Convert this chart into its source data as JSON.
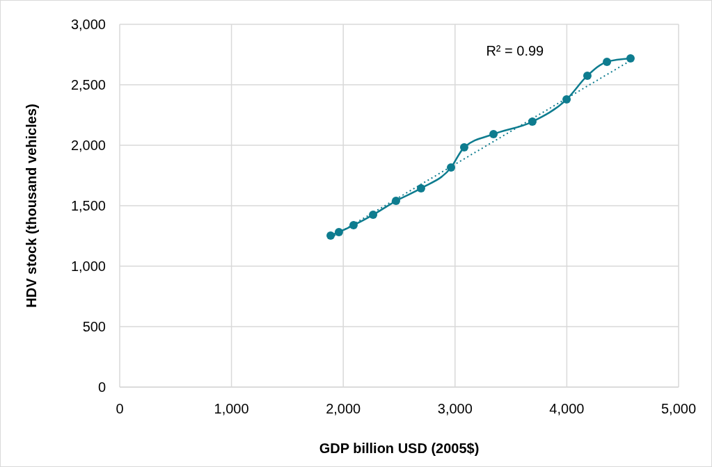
{
  "chart_data": {
    "type": "line",
    "xlabel": "GDP billion USD (2005$)",
    "ylabel": "HDV stock (thousand vehicles)",
    "xlim": [
      0,
      5000
    ],
    "xticks": [
      {
        "value": 0,
        "label": "0"
      },
      {
        "value": 1000,
        "label": "1,000"
      },
      {
        "value": 2000,
        "label": "2,000"
      },
      {
        "value": 3000,
        "label": "3,000"
      },
      {
        "value": 4000,
        "label": "4,000"
      },
      {
        "value": 5000,
        "label": "5,000"
      }
    ],
    "ylim": [
      0,
      3000
    ],
    "yticks": [
      {
        "value": 0,
        "label": "0"
      },
      {
        "value": 500,
        "label": "500"
      },
      {
        "value": 1000,
        "label": "1,000"
      },
      {
        "value": 1500,
        "label": "1,500"
      },
      {
        "value": 2000,
        "label": "2,000"
      },
      {
        "value": 2500,
        "label": "2,500"
      },
      {
        "value": 3000,
        "label": "3,000"
      }
    ],
    "grid": true,
    "annotations": [
      "R² = 0.99"
    ],
    "series": [
      {
        "color": "#0e7c8f",
        "marker": "circle",
        "line_style": "solid",
        "x": [
          1887,
          1961,
          2092,
          2267,
          2472,
          2696,
          2964,
          3082,
          3344,
          3692,
          3998,
          4184,
          4359,
          4570
        ],
        "values": [
          1253,
          1282,
          1339,
          1425,
          1540,
          1644,
          1816,
          1983,
          2092,
          2195,
          2379,
          2575,
          2690,
          2718
        ]
      },
      {
        "color": "#0e7c8f",
        "marker": "none",
        "line_style": "dotted",
        "x": [
          1887,
          4570
        ],
        "values": [
          1235,
          2700
        ]
      }
    ]
  }
}
